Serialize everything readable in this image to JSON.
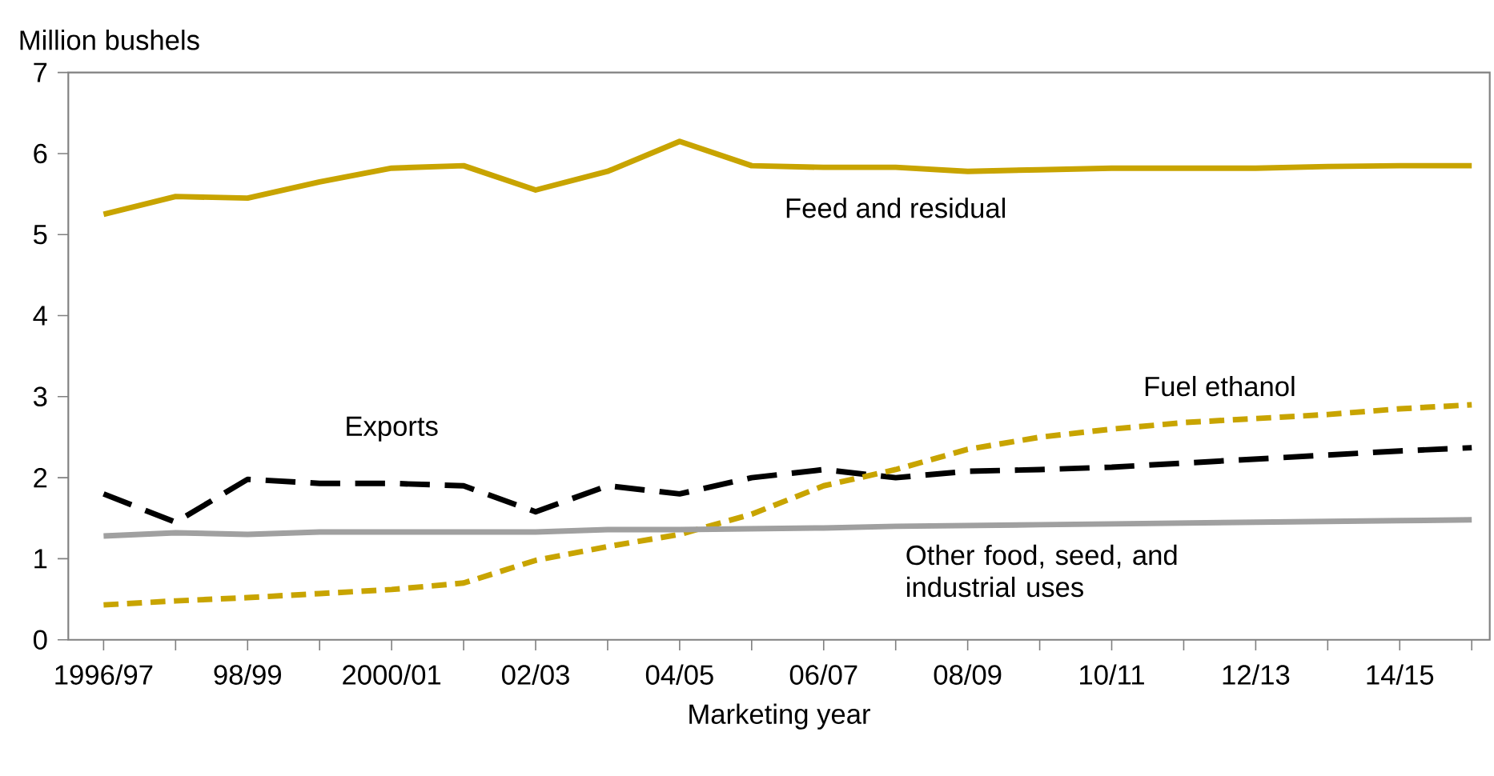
{
  "chart_data": {
    "type": "line",
    "ylabel": "Million bushels",
    "xlabel": "Marketing year",
    "categories": [
      "1996/97",
      null,
      "98/99",
      null,
      "2000/01",
      null,
      "02/03",
      null,
      "04/05",
      null,
      "06/07",
      null,
      "08/09",
      null,
      "10/11",
      null,
      "12/13",
      null,
      "14/15",
      null
    ],
    "ylim": [
      0,
      7
    ],
    "yticks": [
      0,
      1,
      2,
      3,
      4,
      5,
      6,
      7
    ],
    "grid": false,
    "legend": false,
    "marker": "none",
    "series": [
      {
        "name": "Feed and residual",
        "color": "#c8a400",
        "line_style": "solid",
        "values": [
          5.25,
          5.47,
          5.45,
          5.65,
          5.82,
          5.85,
          5.55,
          5.78,
          6.15,
          5.85,
          5.83,
          5.83,
          5.78,
          5.8,
          5.82,
          5.82,
          5.82,
          5.84,
          5.85,
          5.85
        ]
      },
      {
        "name": "Exports",
        "color": "#000000",
        "line_style": "dashed",
        "values": [
          1.8,
          1.45,
          1.98,
          1.93,
          1.93,
          1.9,
          1.58,
          1.9,
          1.8,
          2.0,
          2.1,
          2.0,
          2.08,
          2.1,
          2.13,
          2.18,
          2.23,
          2.28,
          2.33,
          2.37
        ]
      },
      {
        "name": "Fuel ethanol",
        "color": "#c8a400",
        "line_style": "dotted",
        "values": [
          0.43,
          0.48,
          0.52,
          0.57,
          0.62,
          0.7,
          0.98,
          1.15,
          1.3,
          1.55,
          1.9,
          2.1,
          2.35,
          2.5,
          2.6,
          2.68,
          2.73,
          2.78,
          2.85,
          2.9
        ]
      },
      {
        "name": "Other food, seed, and industrial uses",
        "color": "#a0a0a0",
        "line_style": "solid",
        "values": [
          1.28,
          1.32,
          1.3,
          1.33,
          1.33,
          1.33,
          1.33,
          1.36,
          1.36,
          1.37,
          1.38,
          1.4,
          1.41,
          1.42,
          1.43,
          1.44,
          1.45,
          1.46,
          1.47,
          1.48
        ]
      }
    ]
  }
}
